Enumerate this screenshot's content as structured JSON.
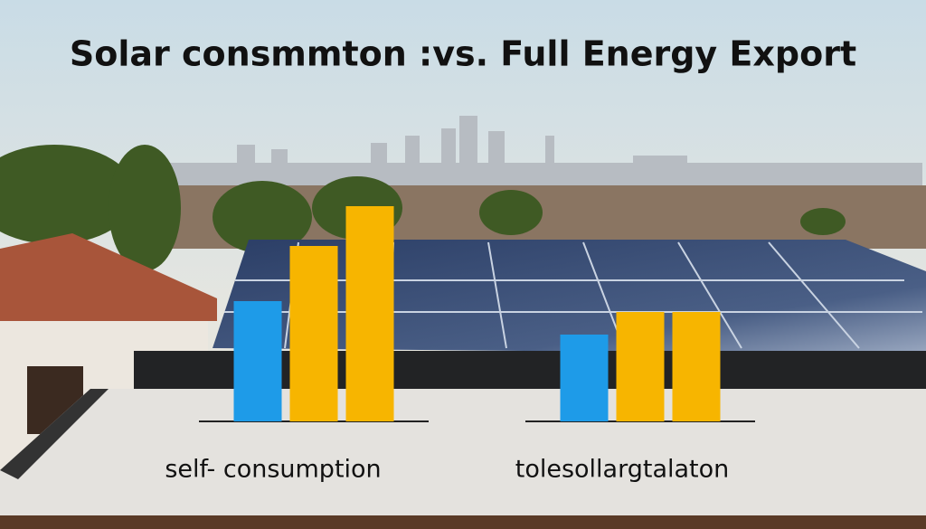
{
  "chart_data": {
    "type": "bar",
    "title": "Solar consmmton :vs. Full Energy Export",
    "categories": [
      "self- consumption",
      "tolesollargtalaton"
    ],
    "series": [
      {
        "color": "#1e9be8",
        "values": [
          133,
          96
        ]
      },
      {
        "color": "#f7b500",
        "values": [
          194,
          121
        ]
      },
      {
        "color": "#f7b500",
        "values": [
          238,
          121
        ]
      }
    ]
  }
}
